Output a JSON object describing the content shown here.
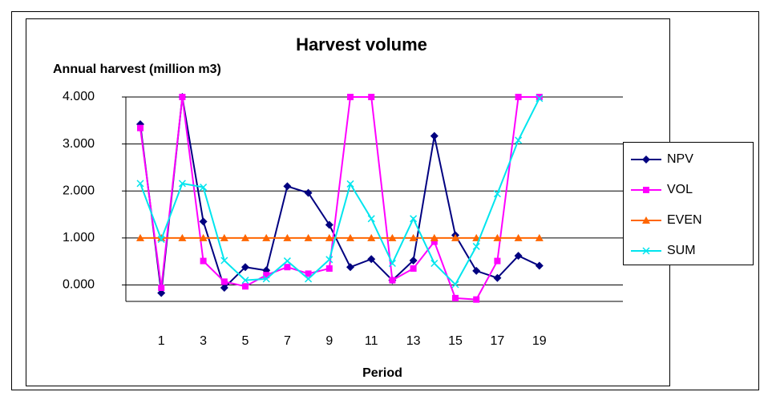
{
  "chart_data": {
    "type": "line",
    "title": "Harvest volume",
    "y_label": "Annual harvest (million m3)",
    "x_label": "Period",
    "categories": [
      null,
      "1",
      null,
      "3",
      null,
      "5",
      null,
      "7",
      null,
      "9",
      null,
      "11",
      null,
      "13",
      null,
      "15",
      null,
      "17",
      null,
      "19"
    ],
    "ylim": [
      -0.35,
      4
    ],
    "yticks": [
      {
        "value": 0,
        "label": "0.000"
      },
      {
        "value": 1,
        "label": "1.000"
      },
      {
        "value": 2,
        "label": "2.000"
      },
      {
        "value": 3,
        "label": "3.000"
      },
      {
        "value": 4,
        "label": "4.000"
      }
    ],
    "grid": true,
    "legend": "right",
    "series": [
      {
        "name": "NPV",
        "color": "#000080",
        "marker": "diamond",
        "values": [
          3.42,
          -0.17,
          4.0,
          1.35,
          -0.06,
          0.38,
          0.31,
          2.1,
          1.96,
          1.28,
          0.38,
          0.55,
          0.1,
          0.52,
          3.17,
          1.06,
          0.3,
          0.15,
          0.62,
          0.41
        ]
      },
      {
        "name": "VOL",
        "color": "#ff00ff",
        "marker": "square",
        "values": [
          3.34,
          -0.06,
          4.0,
          0.51,
          0.07,
          -0.03,
          0.21,
          0.38,
          0.24,
          0.35,
          4.0,
          4.0,
          0.1,
          0.35,
          0.92,
          -0.28,
          -0.31,
          0.51,
          4.0,
          4.0
        ]
      },
      {
        "name": "EVEN",
        "color": "#ff6600",
        "marker": "triangle",
        "values": [
          1,
          1,
          1,
          1,
          1,
          1,
          1,
          1,
          1,
          1,
          1,
          1,
          1,
          1,
          1,
          1,
          1,
          1,
          1,
          1
        ]
      },
      {
        "name": "SUM",
        "color": "#00e5ee",
        "marker": "x",
        "values": [
          2.16,
          0.97,
          2.16,
          2.08,
          0.52,
          0.1,
          0.13,
          0.51,
          0.13,
          0.54,
          2.15,
          1.41,
          0.46,
          1.41,
          0.46,
          0.01,
          0.82,
          1.94,
          3.08,
          3.97
        ]
      }
    ]
  }
}
